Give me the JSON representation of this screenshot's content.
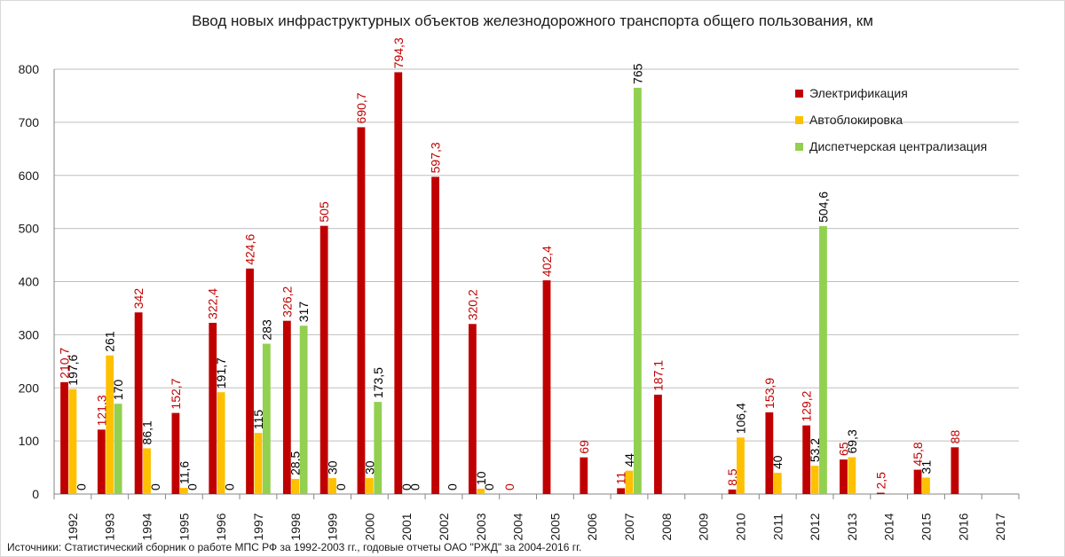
{
  "chart_data": {
    "type": "bar",
    "title": "Ввод новых инфраструктурных объектов железнодорожного транспорта общего пользования, км",
    "xlabel": "",
    "ylabel": "",
    "ylim": [
      0,
      800
    ],
    "yticks": [
      0,
      100,
      200,
      300,
      400,
      500,
      600,
      700,
      800
    ],
    "grid": true,
    "legend_position": "top-right",
    "categories": [
      "1992",
      "1993",
      "1994",
      "1995",
      "1996",
      "1997",
      "1998",
      "1999",
      "2000",
      "2001",
      "2002",
      "2003",
      "2004",
      "2005",
      "2006",
      "2007",
      "2008",
      "2009",
      "2010",
      "2011",
      "2012",
      "2013",
      "2014",
      "2015",
      "2016",
      "2017"
    ],
    "series": [
      {
        "name": "Электрификация",
        "color": "#c00000",
        "label_color": "#c00000",
        "values": [
          210.7,
          121.3,
          342,
          152.7,
          322.4,
          424.6,
          326.2,
          505,
          690.7,
          794.3,
          597.3,
          320.2,
          0,
          402.4,
          69,
          11,
          187.1,
          null,
          8.5,
          153.9,
          129.2,
          65,
          2.5,
          45.8,
          88,
          null
        ],
        "labels": [
          "210,7",
          "121,3",
          "342",
          "152,7",
          "322,4",
          "424,6",
          "326,2",
          "505",
          "690,7",
          "794,3",
          "597,3",
          "320,2",
          "0",
          "402,4",
          "69",
          "11",
          "187,1",
          null,
          "8,5",
          "153,9",
          "129,2",
          "65",
          "2,5",
          "45,8",
          "88",
          null
        ]
      },
      {
        "name": "Автоблокировка",
        "color": "#ffc000",
        "label_color": "#000000",
        "values": [
          197.6,
          261,
          86.1,
          11.6,
          191.7,
          115,
          28.5,
          30,
          30,
          0,
          null,
          10,
          null,
          null,
          null,
          44,
          null,
          null,
          106.4,
          40,
          53.2,
          69.3,
          null,
          31,
          null,
          null
        ],
        "labels": [
          "197,6",
          "261",
          "86,1",
          "11,6",
          "191,7",
          "115",
          "28,5",
          "30",
          "30",
          "0",
          null,
          "10",
          null,
          null,
          null,
          "44",
          null,
          null,
          "106,4",
          "40",
          "53,2",
          "69,3",
          null,
          "31",
          null,
          null
        ]
      },
      {
        "name": "Диспетчерская централизация",
        "color": "#92d050",
        "label_color": "#000000",
        "values": [
          0,
          170,
          0,
          0,
          0,
          283,
          317,
          0,
          173.5,
          0,
          0,
          0,
          null,
          null,
          null,
          765,
          null,
          null,
          null,
          null,
          504.6,
          null,
          null,
          null,
          null,
          null
        ],
        "labels": [
          "0",
          "170",
          "0",
          "0",
          "0",
          "283",
          "317",
          "0",
          "173,5",
          "0",
          "0",
          "0",
          null,
          null,
          null,
          "765",
          null,
          null,
          null,
          null,
          "504,6",
          null,
          null,
          null,
          null,
          null
        ]
      }
    ]
  },
  "source_note": "Источники: Статистический сборник о работе МПС РФ за 1992-2003  гг., годовые отчеты ОАО \"РЖД\" за 2004-2016  гг."
}
